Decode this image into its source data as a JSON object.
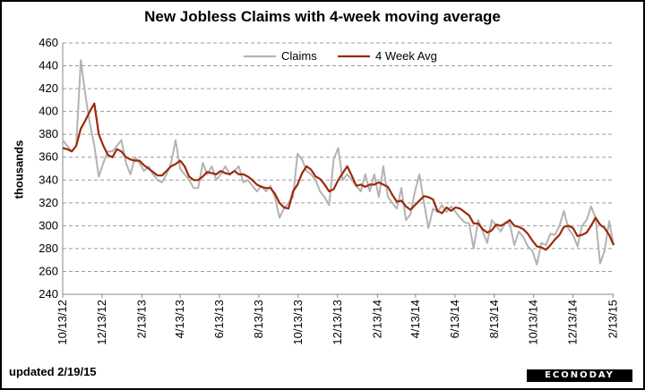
{
  "chart_data": {
    "type": "line",
    "title": "New Jobless Claims with 4-week moving average",
    "ylabel": "thousands",
    "ylim": [
      240,
      460
    ],
    "yticks": [
      240,
      260,
      280,
      300,
      320,
      340,
      360,
      380,
      400,
      420,
      440,
      460
    ],
    "xlim": [
      "2012-10-13",
      "2015-02-14"
    ],
    "x_ticks": [
      {
        "date": "2012-10-13",
        "label": "10/13/12"
      },
      {
        "date": "2012-12-13",
        "label": "12/13/12"
      },
      {
        "date": "2013-02-13",
        "label": "2/13/13"
      },
      {
        "date": "2013-04-13",
        "label": "4/13/13"
      },
      {
        "date": "2013-06-13",
        "label": "6/13/13"
      },
      {
        "date": "2013-08-13",
        "label": "8/13/13"
      },
      {
        "date": "2013-10-13",
        "label": "10/13/13"
      },
      {
        "date": "2013-12-13",
        "label": "12/13/13"
      },
      {
        "date": "2014-02-13",
        "label": "2/13/14"
      },
      {
        "date": "2014-04-13",
        "label": "4/13/14"
      },
      {
        "date": "2014-06-13",
        "label": "6/13/14"
      },
      {
        "date": "2014-08-13",
        "label": "8/13/14"
      },
      {
        "date": "2014-10-13",
        "label": "10/13/14"
      },
      {
        "date": "2014-12-13",
        "label": "12/13/14"
      },
      {
        "date": "2015-02-13",
        "label": "2/13/15"
      }
    ],
    "grid": true,
    "legend_position": "top-center",
    "series": [
      {
        "name": "Claims",
        "color": "#b3b3b3",
        "points": [
          [
            "2012-10-13",
            375
          ],
          [
            "2012-10-20",
            370
          ],
          [
            "2012-10-27",
            365
          ],
          [
            "2012-11-03",
            370
          ],
          [
            "2012-11-10",
            445
          ],
          [
            "2012-11-17",
            415
          ],
          [
            "2012-11-24",
            390
          ],
          [
            "2012-12-01",
            370
          ],
          [
            "2012-12-08",
            343
          ],
          [
            "2012-12-15",
            355
          ],
          [
            "2012-12-22",
            365
          ],
          [
            "2012-12-29",
            365
          ],
          [
            "2013-01-05",
            370
          ],
          [
            "2013-01-12",
            375
          ],
          [
            "2013-01-19",
            355
          ],
          [
            "2013-01-26",
            345
          ],
          [
            "2013-02-02",
            360
          ],
          [
            "2013-02-09",
            355
          ],
          [
            "2013-02-16",
            348
          ],
          [
            "2013-02-23",
            352
          ],
          [
            "2013-03-02",
            345
          ],
          [
            "2013-03-09",
            340
          ],
          [
            "2013-03-16",
            338
          ],
          [
            "2013-03-23",
            345
          ],
          [
            "2013-03-30",
            355
          ],
          [
            "2013-04-06",
            375
          ],
          [
            "2013-04-13",
            350
          ],
          [
            "2013-04-20",
            345
          ],
          [
            "2013-04-27",
            340
          ],
          [
            "2013-05-04",
            333
          ],
          [
            "2013-05-11",
            333
          ],
          [
            "2013-05-18",
            355
          ],
          [
            "2013-05-25",
            345
          ],
          [
            "2013-06-01",
            352
          ],
          [
            "2013-06-08",
            340
          ],
          [
            "2013-06-15",
            345
          ],
          [
            "2013-06-22",
            352
          ],
          [
            "2013-06-29",
            345
          ],
          [
            "2013-07-06",
            348
          ],
          [
            "2013-07-13",
            352
          ],
          [
            "2013-07-20",
            338
          ],
          [
            "2013-07-27",
            340
          ],
          [
            "2013-08-03",
            335
          ],
          [
            "2013-08-10",
            330
          ],
          [
            "2013-08-17",
            335
          ],
          [
            "2013-08-24",
            330
          ],
          [
            "2013-08-31",
            335
          ],
          [
            "2013-09-07",
            325
          ],
          [
            "2013-09-14",
            307
          ],
          [
            "2013-09-21",
            315
          ],
          [
            "2013-09-28",
            320
          ],
          [
            "2013-10-05",
            325
          ],
          [
            "2013-10-12",
            363
          ],
          [
            "2013-10-19",
            358
          ],
          [
            "2013-10-26",
            348
          ],
          [
            "2013-11-02",
            345
          ],
          [
            "2013-11-09",
            340
          ],
          [
            "2013-11-16",
            330
          ],
          [
            "2013-11-23",
            325
          ],
          [
            "2013-11-30",
            318
          ],
          [
            "2013-12-07",
            358
          ],
          [
            "2013-12-14",
            368
          ],
          [
            "2013-12-21",
            340
          ],
          [
            "2013-12-28",
            345
          ],
          [
            "2014-01-04",
            340
          ],
          [
            "2014-01-11",
            335
          ],
          [
            "2014-01-18",
            330
          ],
          [
            "2014-01-25",
            345
          ],
          [
            "2014-02-01",
            330
          ],
          [
            "2014-02-08",
            345
          ],
          [
            "2014-02-15",
            325
          ],
          [
            "2014-02-22",
            352
          ],
          [
            "2014-03-01",
            325
          ],
          [
            "2014-03-08",
            320
          ],
          [
            "2014-03-15",
            315
          ],
          [
            "2014-03-22",
            333
          ],
          [
            "2014-03-29",
            305
          ],
          [
            "2014-04-05",
            310
          ],
          [
            "2014-04-12",
            330
          ],
          [
            "2014-04-19",
            345
          ],
          [
            "2014-04-26",
            320
          ],
          [
            "2014-05-03",
            298
          ],
          [
            "2014-05-10",
            315
          ],
          [
            "2014-05-17",
            312
          ],
          [
            "2014-05-24",
            318
          ],
          [
            "2014-05-31",
            312
          ],
          [
            "2014-06-07",
            317
          ],
          [
            "2014-06-14",
            312
          ],
          [
            "2014-06-21",
            307
          ],
          [
            "2014-06-28",
            303
          ],
          [
            "2014-07-05",
            302
          ],
          [
            "2014-07-12",
            280
          ],
          [
            "2014-07-19",
            305
          ],
          [
            "2014-07-26",
            295
          ],
          [
            "2014-08-02",
            285
          ],
          [
            "2014-08-09",
            305
          ],
          [
            "2014-08-16",
            300
          ],
          [
            "2014-08-23",
            295
          ],
          [
            "2014-08-30",
            303
          ],
          [
            "2014-09-06",
            302
          ],
          [
            "2014-09-13",
            283
          ],
          [
            "2014-09-20",
            295
          ],
          [
            "2014-09-27",
            290
          ],
          [
            "2014-10-04",
            282
          ],
          [
            "2014-10-11",
            278
          ],
          [
            "2014-10-18",
            266
          ],
          [
            "2014-10-25",
            285
          ],
          [
            "2014-11-01",
            283
          ],
          [
            "2014-11-08",
            293
          ],
          [
            "2014-11-15",
            292
          ],
          [
            "2014-11-22",
            300
          ],
          [
            "2014-11-29",
            313
          ],
          [
            "2014-12-06",
            297
          ],
          [
            "2014-12-13",
            292
          ],
          [
            "2014-12-20",
            282
          ],
          [
            "2014-12-27",
            300
          ],
          [
            "2015-01-03",
            305
          ],
          [
            "2015-01-10",
            317
          ],
          [
            "2015-01-17",
            307
          ],
          [
            "2015-01-24",
            267
          ],
          [
            "2015-01-31",
            278
          ],
          [
            "2015-02-07",
            304
          ],
          [
            "2015-02-14",
            283
          ]
        ]
      },
      {
        "name": "4 Week Avg",
        "color": "#9b2a0a",
        "points": [
          [
            "2012-10-13",
            368
          ],
          [
            "2012-10-20",
            367
          ],
          [
            "2012-10-27",
            365
          ],
          [
            "2012-11-03",
            370
          ],
          [
            "2012-11-10",
            385
          ],
          [
            "2012-11-17",
            392
          ],
          [
            "2012-11-24",
            400
          ],
          [
            "2012-12-01",
            407
          ],
          [
            "2012-12-08",
            380
          ],
          [
            "2012-12-15",
            370
          ],
          [
            "2012-12-22",
            362
          ],
          [
            "2012-12-29",
            360
          ],
          [
            "2013-01-05",
            367
          ],
          [
            "2013-01-12",
            365
          ],
          [
            "2013-01-19",
            360
          ],
          [
            "2013-01-26",
            358
          ],
          [
            "2013-02-02",
            357
          ],
          [
            "2013-02-09",
            357
          ],
          [
            "2013-02-16",
            353
          ],
          [
            "2013-02-23",
            350
          ],
          [
            "2013-03-02",
            347
          ],
          [
            "2013-03-09",
            344
          ],
          [
            "2013-03-16",
            344
          ],
          [
            "2013-03-23",
            348
          ],
          [
            "2013-03-30",
            352
          ],
          [
            "2013-04-06",
            354
          ],
          [
            "2013-04-13",
            357
          ],
          [
            "2013-04-20",
            352
          ],
          [
            "2013-04-27",
            343
          ],
          [
            "2013-05-04",
            340
          ],
          [
            "2013-05-11",
            340
          ],
          [
            "2013-05-18",
            343
          ],
          [
            "2013-05-25",
            347
          ],
          [
            "2013-06-01",
            346
          ],
          [
            "2013-06-08",
            345
          ],
          [
            "2013-06-15",
            348
          ],
          [
            "2013-06-22",
            346
          ],
          [
            "2013-06-29",
            345
          ],
          [
            "2013-07-06",
            348
          ],
          [
            "2013-07-13",
            345
          ],
          [
            "2013-07-20",
            345
          ],
          [
            "2013-07-27",
            343
          ],
          [
            "2013-08-03",
            340
          ],
          [
            "2013-08-10",
            336
          ],
          [
            "2013-08-17",
            334
          ],
          [
            "2013-08-24",
            333
          ],
          [
            "2013-08-31",
            333
          ],
          [
            "2013-09-07",
            328
          ],
          [
            "2013-09-14",
            320
          ],
          [
            "2013-09-21",
            316
          ],
          [
            "2013-09-28",
            315
          ],
          [
            "2013-10-05",
            330
          ],
          [
            "2013-10-12",
            336
          ],
          [
            "2013-10-19",
            346
          ],
          [
            "2013-10-26",
            352
          ],
          [
            "2013-11-02",
            349
          ],
          [
            "2013-11-09",
            343
          ],
          [
            "2013-11-16",
            341
          ],
          [
            "2013-11-23",
            336
          ],
          [
            "2013-11-30",
            330
          ],
          [
            "2013-12-07",
            332
          ],
          [
            "2013-12-14",
            340
          ],
          [
            "2013-12-21",
            346
          ],
          [
            "2013-12-28",
            352
          ],
          [
            "2014-01-04",
            344
          ],
          [
            "2014-01-11",
            335
          ],
          [
            "2014-01-18",
            336
          ],
          [
            "2014-01-25",
            334
          ],
          [
            "2014-02-01",
            336
          ],
          [
            "2014-02-08",
            336
          ],
          [
            "2014-02-15",
            338
          ],
          [
            "2014-02-22",
            336
          ],
          [
            "2014-03-01",
            334
          ],
          [
            "2014-03-08",
            327
          ],
          [
            "2014-03-15",
            321
          ],
          [
            "2014-03-22",
            322
          ],
          [
            "2014-03-29",
            317
          ],
          [
            "2014-04-05",
            314
          ],
          [
            "2014-04-12",
            318
          ],
          [
            "2014-04-19",
            322
          ],
          [
            "2014-04-26",
            326
          ],
          [
            "2014-05-03",
            325
          ],
          [
            "2014-05-10",
            323
          ],
          [
            "2014-05-17",
            313
          ],
          [
            "2014-05-24",
            311
          ],
          [
            "2014-05-31",
            316
          ],
          [
            "2014-06-07",
            313
          ],
          [
            "2014-06-14",
            316
          ],
          [
            "2014-06-21",
            315
          ],
          [
            "2014-06-28",
            312
          ],
          [
            "2014-07-05",
            309
          ],
          [
            "2014-07-12",
            302
          ],
          [
            "2014-07-19",
            302
          ],
          [
            "2014-07-26",
            297
          ],
          [
            "2014-08-02",
            294
          ],
          [
            "2014-08-09",
            296
          ],
          [
            "2014-08-16",
            301
          ],
          [
            "2014-08-23",
            300
          ],
          [
            "2014-08-30",
            302
          ],
          [
            "2014-09-06",
            305
          ],
          [
            "2014-09-13",
            300
          ],
          [
            "2014-09-20",
            299
          ],
          [
            "2014-09-27",
            297
          ],
          [
            "2014-10-04",
            293
          ],
          [
            "2014-10-11",
            287
          ],
          [
            "2014-10-18",
            282
          ],
          [
            "2014-10-25",
            281
          ],
          [
            "2014-11-01",
            279
          ],
          [
            "2014-11-08",
            283
          ],
          [
            "2014-11-15",
            288
          ],
          [
            "2014-11-22",
            292
          ],
          [
            "2014-11-29",
            299
          ],
          [
            "2014-12-06",
            300
          ],
          [
            "2014-12-13",
            298
          ],
          [
            "2014-12-20",
            291
          ],
          [
            "2014-12-27",
            292
          ],
          [
            "2015-01-03",
            294
          ],
          [
            "2015-01-10",
            300
          ],
          [
            "2015-01-17",
            307
          ],
          [
            "2015-01-24",
            301
          ],
          [
            "2015-01-31",
            298
          ],
          [
            "2015-02-07",
            292
          ],
          [
            "2015-02-14",
            283
          ]
        ]
      }
    ]
  },
  "footer": {
    "updated": "updated 2/19/15",
    "logo": "ECONODAY"
  }
}
